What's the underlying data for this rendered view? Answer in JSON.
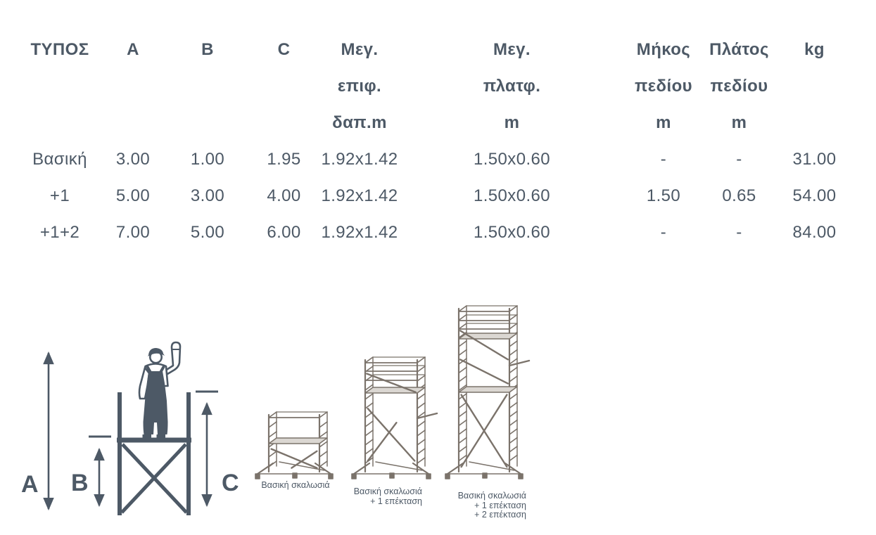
{
  "table": {
    "columns": [
      {
        "id": "typos",
        "lines": [
          "ΤΥΠΟΣ"
        ]
      },
      {
        "id": "a",
        "lines": [
          "A"
        ]
      },
      {
        "id": "b",
        "lines": [
          "B"
        ]
      },
      {
        "id": "c",
        "lines": [
          "C"
        ]
      },
      {
        "id": "max-floor-area",
        "lines": [
          "Μεγ.",
          "επιφ.",
          "δαπ.m"
        ]
      },
      {
        "id": "max-platform",
        "lines": [
          "Μεγ.",
          "πλατφ.",
          "m"
        ]
      },
      {
        "id": "field-length",
        "lines": [
          "Μήκος",
          "πεδίου",
          "m"
        ]
      },
      {
        "id": "field-width",
        "lines": [
          "Πλάτος",
          "πεδίου",
          "m"
        ]
      },
      {
        "id": "kg",
        "lines": [
          "kg"
        ]
      }
    ],
    "rows": [
      {
        "cells": [
          "Βασική",
          "3.00",
          "1.00",
          "1.95",
          "1.92x1.42",
          "1.50x0.60",
          "-",
          "-",
          "31.00"
        ]
      },
      {
        "cells": [
          "+1",
          "5.00",
          "3.00",
          "4.00",
          "1.92x1.42",
          "1.50x0.60",
          "1.50",
          "0.65",
          "54.00"
        ]
      },
      {
        "cells": [
          "+1+2",
          "7.00",
          "5.00",
          "6.00",
          "1.92x1.42",
          "1.50x0.60",
          "-",
          "-",
          "84.00"
        ]
      }
    ]
  },
  "diagram": {
    "label_a": "A",
    "label_b": "B",
    "label_c": "C"
  },
  "illustrations": [
    {
      "lines": [
        "Βασική σκαλωσιά"
      ]
    },
    {
      "lines": [
        "Βασική σκαλωσιά",
        "+ 1 επέκταση"
      ]
    },
    {
      "lines": [
        "Βασική σκαλωσιά",
        "+ 1 επέκταση",
        "+ 2 επέκταση"
      ]
    }
  ],
  "colors": {
    "text": "#4d5966",
    "scaffold_line": "#7b736b",
    "platform_fill": "#dbd7d2"
  }
}
